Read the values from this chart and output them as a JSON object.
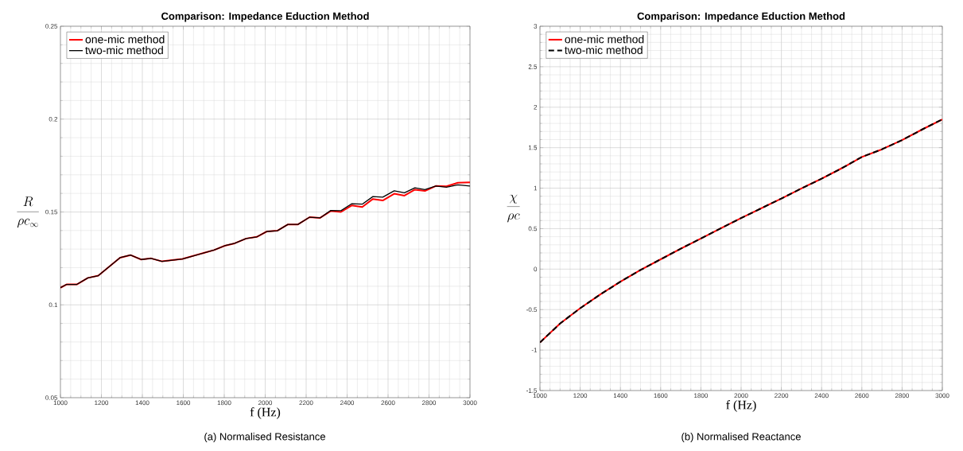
{
  "chart_data": [
    {
      "type": "line",
      "title": "Comparison: Impedance Eduction Method",
      "xlabel": "f (Hz)",
      "ylabel": "\\frac{R}{\\rho c_{\\infty}}",
      "x": [
        1000,
        1030,
        1080,
        1134,
        1185,
        1291,
        1342,
        1394,
        1443,
        1496,
        1596,
        1750,
        1802,
        1851,
        1907,
        1959,
        2008,
        2059,
        2111,
        2160,
        2217,
        2268,
        2320,
        2370,
        2422,
        2474,
        2526,
        2574,
        2630,
        2680,
        2731,
        2780,
        2833,
        2885,
        2941,
        3000
      ],
      "series": [
        {
          "name": "one-mic method",
          "color": "#ff0000",
          "line_style": "solid",
          "values": [
            0.1092,
            0.111,
            0.111,
            0.1145,
            0.1157,
            0.1254,
            0.1268,
            0.1244,
            0.125,
            0.1234,
            0.1247,
            0.1295,
            0.1318,
            0.1331,
            0.1357,
            0.1366,
            0.1395,
            0.1399,
            0.1433,
            0.1433,
            0.1472,
            0.1468,
            0.1505,
            0.15,
            0.1535,
            0.1527,
            0.157,
            0.1562,
            0.1598,
            0.1588,
            0.162,
            0.1613,
            0.164,
            0.1638,
            0.1657,
            0.1659
          ]
        },
        {
          "name": "two-mic method",
          "color": "#000000",
          "line_style": "solid",
          "values": [
            0.1092,
            0.111,
            0.111,
            0.1145,
            0.1157,
            0.1254,
            0.1268,
            0.1244,
            0.125,
            0.1234,
            0.1247,
            0.1295,
            0.1318,
            0.1331,
            0.1357,
            0.1366,
            0.1395,
            0.1399,
            0.1433,
            0.1433,
            0.1472,
            0.1468,
            0.1508,
            0.1507,
            0.1544,
            0.1542,
            0.1583,
            0.158,
            0.1614,
            0.1603,
            0.163,
            0.162,
            0.164,
            0.1633,
            0.1646,
            0.164
          ]
        }
      ],
      "xlim": [
        1000,
        3000
      ],
      "ylim": [
        0.05,
        0.25
      ],
      "xticks": [
        1000,
        1200,
        1400,
        1600,
        1800,
        2000,
        2200,
        2400,
        2600,
        2800,
        3000
      ],
      "yticks": [
        0.05,
        0.1,
        0.15,
        0.2,
        0.25
      ],
      "grid": true,
      "legend": "top left",
      "annotations": [
        "(a) Normalised Resistance"
      ]
    },
    {
      "type": "line",
      "title": "Comparison: Impedance Eduction Method",
      "xlabel": "f (Hz)",
      "ylabel": "\\frac{\\chi}{\\rho c}",
      "x": [
        1000,
        1100,
        1200,
        1300,
        1400,
        1500,
        1600,
        1700,
        1800,
        1900,
        2000,
        2100,
        2200,
        2300,
        2400,
        2500,
        2600,
        2700,
        2800,
        2900,
        3000
      ],
      "series": [
        {
          "name": "one-mic method",
          "color": "#ff0000",
          "line_style": "solid",
          "values": [
            -0.906,
            -0.672,
            -0.483,
            -0.313,
            -0.155,
            -0.011,
            0.121,
            0.253,
            0.378,
            0.506,
            0.63,
            0.751,
            0.872,
            0.997,
            1.117,
            1.246,
            1.385,
            1.48,
            1.593,
            1.725,
            1.85
          ]
        },
        {
          "name": "two-mic method",
          "color": "#000000",
          "line_style": "dashed",
          "values": [
            -0.906,
            -0.672,
            -0.483,
            -0.313,
            -0.155,
            -0.011,
            0.121,
            0.253,
            0.378,
            0.506,
            0.63,
            0.751,
            0.872,
            0.997,
            1.117,
            1.246,
            1.385,
            1.48,
            1.593,
            1.725,
            1.85
          ]
        }
      ],
      "xlim": [
        1000,
        3000
      ],
      "ylim": [
        -1.5,
        3
      ],
      "xticks": [
        1000,
        1200,
        1400,
        1600,
        1800,
        2000,
        2200,
        2400,
        2600,
        2800,
        3000
      ],
      "yticks": [
        -1.5,
        -1,
        -0.5,
        0,
        0.5,
        1,
        1.5,
        2,
        2.5,
        3
      ],
      "grid": true,
      "legend": "top left",
      "annotations": [
        "(b) Normalised Reactance"
      ]
    }
  ]
}
